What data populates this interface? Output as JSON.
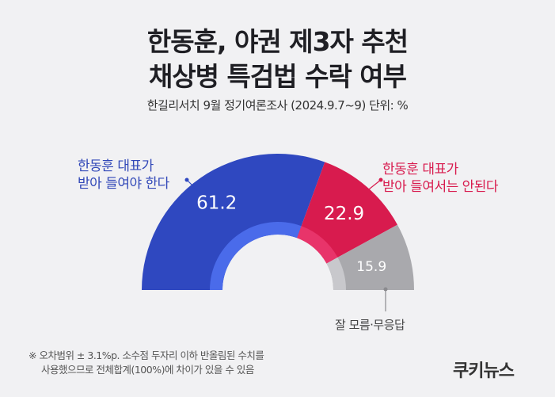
{
  "header": {
    "title_line1": "한동훈, 야권 제3자 추천",
    "title_line2": "채상병 특검법 수락 여부",
    "subtitle": "한길리서치 9월 정기여론조사 (2024.9.7~9) 단위: %"
  },
  "chart_data": {
    "type": "pie",
    "style": "semi-donut",
    "categories": [
      "한동훈 대표가 받아 들여야 한다",
      "한동훈 대표가 받아 들여서는 안된다",
      "잘 모름·무응답"
    ],
    "values": [
      61.2,
      22.9,
      15.9
    ],
    "labels": [
      {
        "line1": "한동훈 대표가",
        "line2": "받아 들여야 한다"
      },
      {
        "line1": "한동훈 대표가",
        "line2": "받아 들여서는 안된다"
      },
      {
        "line1": "잘 모름·무응답",
        "line2": ""
      }
    ],
    "value_labels": [
      "61.2",
      "22.9",
      "15.9"
    ],
    "colors": [
      "#2f48c0",
      "#d81b4e",
      "#a9a9ad"
    ],
    "inner_colors": [
      "#4a6bea",
      "#e8346a",
      "#c8c8cc"
    ]
  },
  "footnote": {
    "line1": "※ 오차범위 ± 3.1%p. 소수점 두자리 이하 반올림된 수치를",
    "line2": "사용했으므로 전체합계(100%)에 차이가 있을 수 있음"
  },
  "brand": "쿠키뉴스"
}
